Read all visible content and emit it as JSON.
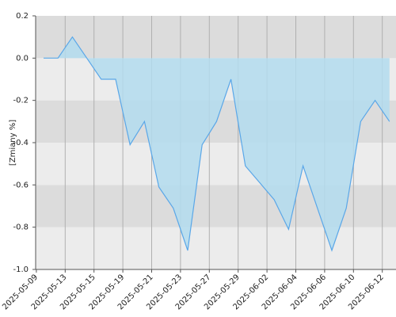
{
  "chart_data": {
    "type": "area",
    "y_label": "[Zmiany %]",
    "x": [
      "2025-05-09",
      "2025-05-12",
      "2025-05-13",
      "2025-05-14",
      "2025-05-15",
      "2025-05-16",
      "2025-05-19",
      "2025-05-20",
      "2025-05-21",
      "2025-05-22",
      "2025-05-23",
      "2025-05-26",
      "2025-05-27",
      "2025-05-28",
      "2025-05-29",
      "2025-05-30",
      "2025-06-02",
      "2025-06-03",
      "2025-06-04",
      "2025-06-05",
      "2025-06-06",
      "2025-06-09",
      "2025-06-10",
      "2025-06-11",
      "2025-06-12"
    ],
    "xticks": [
      "2025-05-09",
      "2025-05-13",
      "2025-05-15",
      "2025-05-19",
      "2025-05-21",
      "2025-05-23",
      "2025-05-27",
      "2025-05-29",
      "2025-06-02",
      "2025-06-04",
      "2025-06-06",
      "2025-06-10",
      "2025-06-12"
    ],
    "series": [
      {
        "color": "#5aa7e8",
        "fill": "#b3dcee",
        "values": [
          0,
          0,
          0.1,
          0,
          -0.1,
          -0.1,
          -0.41,
          -0.3,
          -0.61,
          -0.71,
          -0.91,
          -0.41,
          -0.3,
          -0.1,
          -0.51,
          -0.59,
          -0.67,
          -0.81,
          -0.51,
          -0.71,
          -0.91,
          -0.71,
          -0.3,
          -0.2,
          -0.3
        ]
      }
    ],
    "ylim": [
      -1.0,
      0.2
    ],
    "yticks": [
      {
        "value": -1.0,
        "label": "-1.0"
      },
      -0.8,
      -0.6,
      -0.4,
      -0.2,
      {
        "value": 0,
        "label": "0.0"
      },
      0.2
    ],
    "grid": true
  }
}
